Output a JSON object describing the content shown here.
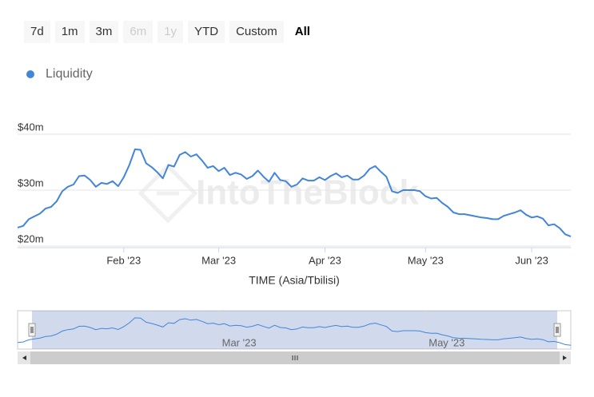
{
  "range_selector": {
    "buttons": [
      {
        "label": "7d"
      },
      {
        "label": "1m"
      },
      {
        "label": "3m"
      },
      {
        "label": "6m",
        "disabled": true
      },
      {
        "label": "1y",
        "disabled": true
      },
      {
        "label": "YTD"
      },
      {
        "label": "Custom"
      },
      {
        "label": "All",
        "selected": true
      }
    ]
  },
  "watermark": "IntoTheBlock",
  "chart_data": {
    "type": "line",
    "xlabel": "TIME (Asia/Tbilisi)",
    "categories": [
      null,
      null,
      null,
      null,
      null,
      null,
      null,
      null,
      null,
      null,
      null,
      null,
      null,
      null,
      null,
      null,
      null,
      null,
      null,
      "Feb '23",
      null,
      null,
      null,
      null,
      null,
      null,
      null,
      null,
      null,
      null,
      null,
      null,
      null,
      null,
      null,
      null,
      "Mar '23",
      null,
      null,
      null,
      null,
      null,
      null,
      null,
      null,
      null,
      null,
      null,
      null,
      null,
      null,
      null,
      null,
      null,
      null,
      "Apr '23",
      null,
      null,
      null,
      null,
      null,
      null,
      null,
      null,
      null,
      null,
      null,
      null,
      null,
      null,
      null,
      null,
      null,
      "May '23",
      null,
      null,
      null,
      null,
      null,
      null,
      null,
      null,
      null,
      null,
      null,
      null,
      null,
      null,
      null,
      null,
      null,
      null,
      "Jun '23",
      null,
      null,
      null,
      null,
      null,
      null,
      null
    ],
    "series": [
      {
        "name": "Liquidity",
        "color": "#4285d9",
        "values": [
          23.3,
          23.6,
          24.8,
          25.3,
          25.8,
          26.7,
          27.0,
          28.0,
          29.8,
          30.6,
          31.0,
          32.5,
          32.6,
          31.8,
          30.6,
          31.3,
          31.1,
          31.6,
          30.7,
          32.3,
          34.5,
          37.3,
          37.2,
          34.8,
          34.1,
          33.2,
          32.1,
          34.5,
          34.2,
          36.3,
          36.8,
          36.0,
          36.4,
          35.3,
          34.0,
          34.3,
          33.4,
          34.0,
          32.7,
          33.1,
          32.8,
          32.0,
          32.5,
          33.5,
          32.4,
          31.5,
          33.1,
          31.8,
          31.6,
          30.6,
          31.0,
          32.1,
          31.7,
          31.7,
          32.3,
          31.8,
          32.5,
          33.0,
          32.3,
          32.6,
          31.9,
          31.9,
          32.6,
          33.8,
          34.3,
          33.3,
          32.4,
          29.8,
          29.5,
          30.0,
          30.0,
          30.0,
          29.8,
          28.9,
          28.5,
          28.6,
          27.7,
          27.0,
          26.0,
          25.7,
          25.7,
          25.5,
          25.3,
          25.1,
          25.0,
          24.8,
          24.8,
          25.4,
          25.7,
          26.0,
          26.4,
          25.6,
          25.1,
          25.3,
          24.9,
          23.7,
          23.9,
          23.2,
          22.1,
          21.7
        ]
      }
    ],
    "ylim": [
      20,
      40
    ],
    "yticks": [
      {
        "value": 20,
        "label": "$20m"
      },
      {
        "value": 30,
        "label": "$30m"
      },
      {
        "value": 40,
        "label": "$40m"
      }
    ],
    "grid": true,
    "navigator": {
      "labels": [
        "Mar '23",
        "May '23"
      ]
    }
  }
}
